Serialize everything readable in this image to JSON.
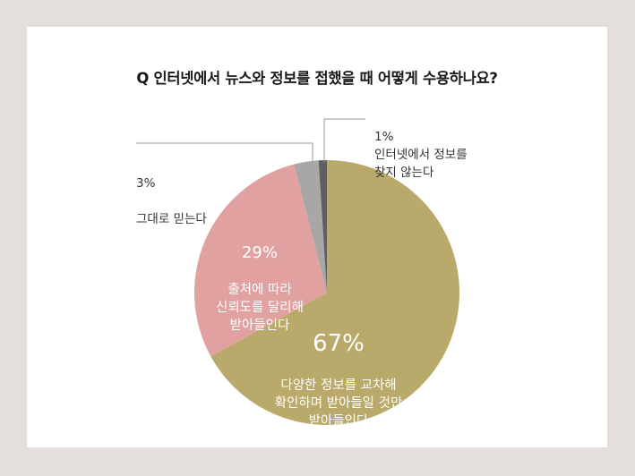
{
  "chart_data": {
    "type": "pie",
    "title": "Q 인터넷에서 뉴스와 정보를 접했을 때 어떻게 수용하나요?",
    "slices": [
      {
        "pct": "67%",
        "value": 67,
        "label": "다양한 정보를 교차해\n확인하며 받아들일 것만\n받아들인다",
        "color": "#b9a96a"
      },
      {
        "pct": "29%",
        "value": 29,
        "label": "출처에 따라\n신뢰도를 달리해\n받아들인다",
        "color": "#e0a1a0"
      },
      {
        "pct": "3%",
        "value": 3,
        "label": "그대로 믿는다",
        "color": "#a7a7a7"
      },
      {
        "pct": "1%",
        "value": 1,
        "label": "인터넷에서 정보를\n찾지 않는다",
        "color": "#5e5e5e"
      }
    ]
  }
}
